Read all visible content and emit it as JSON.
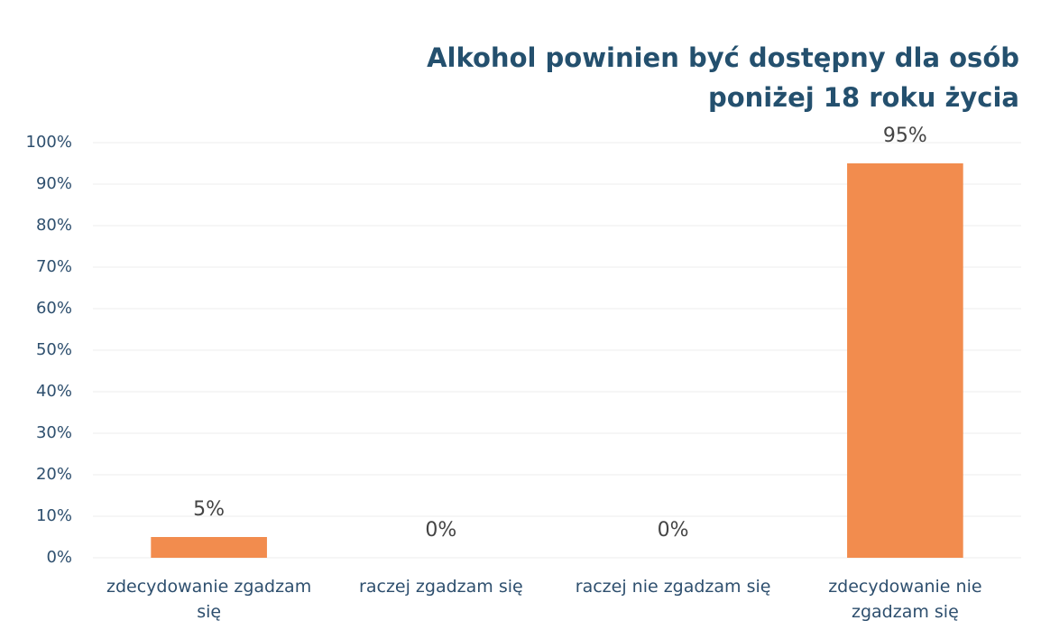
{
  "chart_data": {
    "type": "bar",
    "title": "Alkohol powinien być dostępny dla osób poniżej 18 roku życia",
    "categories": [
      "zdecydowanie zgadzam się",
      "raczej zgadzam się",
      "raczej nie zgadzam się",
      "zdecydowanie nie zgadzam się"
    ],
    "values": [
      5,
      0,
      0,
      95
    ],
    "value_labels": [
      "5%",
      "0%",
      "0%",
      "95%"
    ],
    "color": "#f28c4e",
    "ylim": [
      0,
      100
    ],
    "yticks": [
      {
        "value": 0,
        "label": "0%"
      },
      {
        "value": 10,
        "label": "10%"
      },
      {
        "value": 20,
        "label": "20%"
      },
      {
        "value": 30,
        "label": "30%"
      },
      {
        "value": 40,
        "label": "40%"
      },
      {
        "value": 50,
        "label": "50%"
      },
      {
        "value": 60,
        "label": "60%"
      },
      {
        "value": 70,
        "label": "70%"
      },
      {
        "value": 80,
        "label": "80%"
      },
      {
        "value": 90,
        "label": "90%"
      },
      {
        "value": 100,
        "label": "100%"
      }
    ],
    "grid": true
  }
}
